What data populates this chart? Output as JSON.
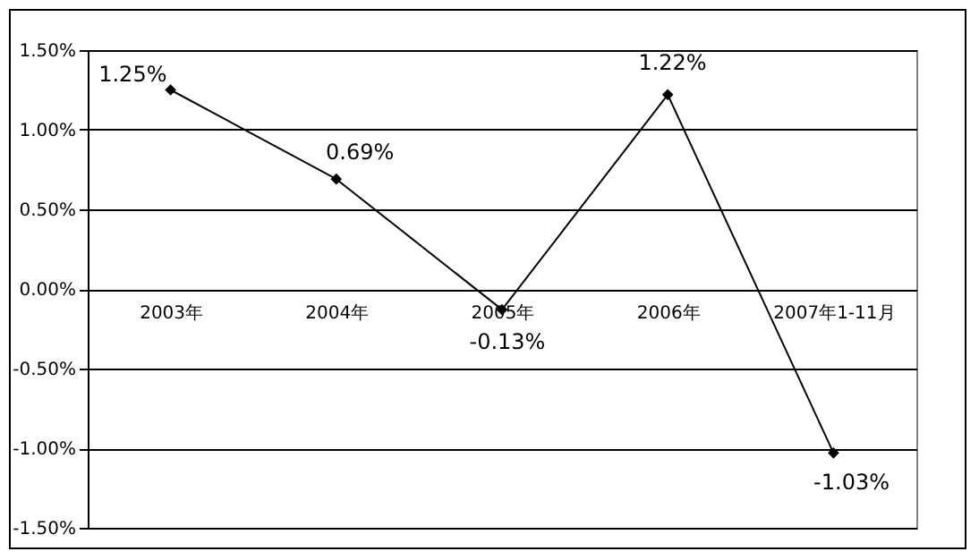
{
  "chart_data": {
    "type": "line",
    "categories": [
      "2003年",
      "2004年",
      "2005年",
      "2006年",
      "2007年1-11月"
    ],
    "series": [
      {
        "color": "#000000",
        "values": [
          1.25,
          0.69,
          -0.13,
          1.22,
          -1.03
        ]
      }
    ],
    "value_labels": [
      "1.25%",
      "0.69%",
      "-0.13%",
      "1.22%",
      "-1.03%"
    ],
    "ylim": [
      -1.5,
      1.5
    ],
    "yticks": [
      {
        "value": -1.5,
        "label": "-1.50%"
      },
      {
        "value": -1,
        "label": "-1.00%"
      },
      {
        "value": -0.5,
        "label": "-0.50%"
      },
      {
        "value": 0,
        "label": "0.00%"
      },
      {
        "value": 0.5,
        "label": "0.50%"
      },
      {
        "value": 1,
        "label": "1.00%"
      },
      {
        "value": 1.5,
        "label": "1.50%"
      }
    ],
    "grid": "y",
    "marker": "diamond",
    "line_style": "solid",
    "legend": false
  }
}
